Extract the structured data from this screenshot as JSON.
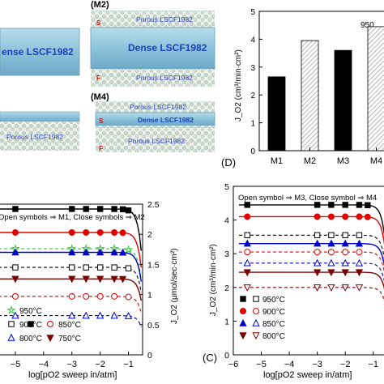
{
  "top_left": {
    "label_m2": "(M2)",
    "label_m4": "(M4)",
    "left_dense": "ense LSCF1982",
    "m2_porous_top": "Porous LSCF1982",
    "m2_dense": "Dense LSCF1982",
    "m2_porous_bottom": "Porous LSCF1982",
    "m2_s": "S",
    "m2_f": "F",
    "m4_porous_top": "Porous LSCF1982",
    "m4_dense": "Dense LSCF1982",
    "m4_porous_bottom": "Porous LSCF1982",
    "m4_s": "S",
    "m4_f": "F",
    "left_bottom_porous": "Porous LSCF1982"
  },
  "panel_d": {
    "label": "(D)",
    "temp_note": "950",
    "ylabel": "J_O2 (cm³/min·cm²)",
    "chart_data": {
      "type": "bar",
      "categories": [
        "M1",
        "M2",
        "M3",
        "M4"
      ],
      "values": [
        2.65,
        3.95,
        3.6,
        4.45
      ],
      "fill": [
        "solid",
        "hatched",
        "solid",
        "hatched"
      ],
      "ylim": [
        0,
        5
      ],
      "yticks": [
        "0",
        "1",
        "2",
        "3",
        "4",
        "5"
      ]
    }
  },
  "panel_bl": {
    "legend_title": "Open symbols ⇒ M1,  Close symbols ⇒ M2",
    "ylabel": "J_O2 (μmol/sec·cm²)",
    "xlabel": "log[pO2 sweep in/atm]",
    "chart_data": {
      "type": "line",
      "xlim": [
        -5.6,
        -0.5
      ],
      "ylim": [
        0,
        2.5
      ],
      "xticks": [
        -5,
        -4,
        -3,
        -2,
        -1
      ],
      "yticks": [
        "0",
        "0.5",
        "1",
        "1.5",
        "2",
        "2.5"
      ],
      "series": [
        {
          "name": "950°C",
          "level": 2.42,
          "color": "#000000",
          "open": false,
          "marker": "square",
          "x": [
            -5,
            -3,
            -2.5,
            -2,
            -1.5,
            -1.2,
            -1
          ]
        },
        {
          "name": "950°C",
          "level": 1.76,
          "color": "#33cc33",
          "open": true,
          "marker": "star",
          "x": [
            -5,
            -3,
            -2.5,
            -2,
            -1.5,
            -1
          ]
        },
        {
          "name": "900°C",
          "level": 2.03,
          "color": "#e00000",
          "open": false,
          "marker": "circle",
          "x": [
            -5,
            -3,
            -2.5,
            -2,
            -1.5,
            -1.2
          ]
        },
        {
          "name": "900°C",
          "level": 1.45,
          "color": "#000000",
          "open": true,
          "marker": "square",
          "x": [
            -5,
            -3,
            -2.5,
            -2,
            -1.5,
            -1
          ]
        },
        {
          "name": "850°C",
          "level": 1.7,
          "color": "#0000cc",
          "open": false,
          "marker": "triangle",
          "x": [
            -5,
            -3,
            -2.5,
            -2,
            -1.5,
            -1.2
          ]
        },
        {
          "name": "850°C",
          "level": 0.97,
          "color": "#e00000",
          "open": true,
          "marker": "circle",
          "x": [
            -5,
            -3,
            -2.5,
            -2,
            -1.5,
            -1
          ]
        },
        {
          "name": "750°C",
          "level": 1.26,
          "color": "#7a0000",
          "open": false,
          "marker": "tri-down",
          "x": [
            -5,
            -3,
            -2.5,
            -2,
            -1.5,
            -1.2
          ]
        },
        {
          "name": "800°C",
          "level": 0.65,
          "color": "#0000cc",
          "open": true,
          "marker": "triangle",
          "x": [
            -5,
            -3,
            -2.5,
            -2,
            -1.5,
            -1
          ]
        }
      ],
      "legend": [
        {
          "label": "950°C",
          "marker": "star",
          "color": "#33cc33",
          "open": true
        },
        {
          "label": "900°C",
          "marker": "square",
          "color": "#000000",
          "open": true
        },
        {
          "label": "850°C",
          "marker": "circle",
          "color": "#e00000",
          "open": true
        },
        {
          "label": "800°C",
          "marker": "triangle",
          "color": "#0000cc",
          "open": true
        },
        {
          "label": "750°C",
          "marker": "tri-down",
          "color": "#7a0000",
          "open": false
        }
      ]
    }
  },
  "panel_c": {
    "label": "(C)",
    "legend_title": "Open symbol ⇒ M3,  Close symbol ⇒ M4",
    "ylabel": "J_O2 (cm³/min·cm²)",
    "xlabel": "log[pO2 sweep in/atm]",
    "chart_data": {
      "type": "line",
      "xlim": [
        -6,
        -0.5
      ],
      "ylim": [
        0,
        5
      ],
      "xticks": [
        -6,
        -5,
        -4,
        -3,
        -2,
        -1
      ],
      "yticks": [
        "0",
        "1",
        "2",
        "3",
        "4",
        "5"
      ],
      "series": [
        {
          "name": "950°C",
          "level": 4.45,
          "color": "#000000",
          "open": false,
          "marker": "square",
          "x": [
            -5.5,
            -3,
            -2.5,
            -2,
            -1.5,
            -1.2
          ]
        },
        {
          "name": "900°C",
          "level": 4.1,
          "color": "#e00000",
          "open": false,
          "marker": "circle",
          "x": [
            -5.5,
            -3,
            -2.5,
            -2,
            -1.5,
            -1.2
          ]
        },
        {
          "name": "950°C",
          "level": 3.55,
          "color": "#000000",
          "open": true,
          "marker": "square",
          "x": [
            -5.5,
            -3,
            -2.5,
            -2,
            -1.5
          ]
        },
        {
          "name": "850°C",
          "level": 3.3,
          "color": "#0000cc",
          "open": false,
          "marker": "triangle",
          "x": [
            -5.5,
            -3,
            -2.5,
            -2,
            -1.5
          ]
        },
        {
          "name": "900°C",
          "level": 3.05,
          "color": "#e00000",
          "open": true,
          "marker": "circle",
          "x": [
            -5.5,
            -3,
            -2.5,
            -2,
            -1.5
          ]
        },
        {
          "name": "850°C",
          "level": 2.72,
          "color": "#0000cc",
          "open": true,
          "marker": "triangle",
          "x": [
            -5.5,
            -3,
            -2.5,
            -2,
            -1.5
          ]
        },
        {
          "name": "800°C",
          "level": 2.45,
          "color": "#7a0000",
          "open": false,
          "marker": "tri-down",
          "x": [
            -5.5,
            -3,
            -2.5,
            -2,
            -1.5
          ]
        },
        {
          "name": "800°C",
          "level": 2.0,
          "color": "#7a0000",
          "open": true,
          "marker": "tri-down",
          "x": [
            -5.5,
            -3,
            -2.5,
            -2,
            -1.5
          ]
        }
      ],
      "legend": [
        {
          "label": "950°C",
          "closed": "square",
          "closedColor": "#000000",
          "open": "square",
          "openColor": "#000000"
        },
        {
          "label": "900°C",
          "closed": "circle",
          "closedColor": "#e00000",
          "open": "circle",
          "openColor": "#e00000"
        },
        {
          "label": "850°C",
          "closed": "triangle",
          "closedColor": "#0000cc",
          "open": "triangle",
          "openColor": "#0000cc"
        },
        {
          "label": "800°C",
          "closed": "tri-down",
          "closedColor": "#7a0000",
          "open": "tri-down",
          "openColor": "#7a0000"
        }
      ]
    }
  },
  "extra_right_label": "M4"
}
